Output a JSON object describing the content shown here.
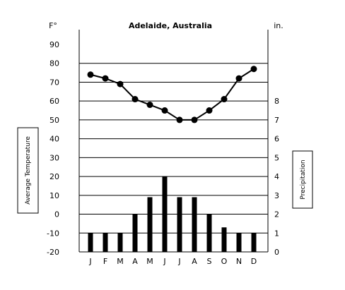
{
  "chart_data": {
    "type": "bar+line",
    "title": "Adelaide, Australia",
    "left_unit": "F°",
    "right_unit": "in.",
    "left_axis_label": "Average Temperature",
    "right_axis_label": "Precipitation",
    "categories": [
      "J",
      "F",
      "M",
      "A",
      "M",
      "J",
      "J",
      "A",
      "S",
      "O",
      "N",
      "D"
    ],
    "temperature": {
      "ylim": [
        -20,
        90
      ],
      "ticks": [
        -20,
        -10,
        0,
        10,
        20,
        30,
        40,
        50,
        60,
        70,
        80,
        90
      ],
      "values": [
        74,
        72,
        69,
        61,
        58,
        55,
        50,
        50,
        55,
        61,
        72,
        77
      ]
    },
    "precipitation": {
      "ylim": [
        0,
        8
      ],
      "ticks": [
        0,
        1,
        2,
        3,
        4,
        5,
        6,
        7,
        8
      ],
      "values": [
        1,
        1,
        1,
        2,
        2.9,
        4,
        2.9,
        2.9,
        2,
        1.3,
        1,
        1
      ]
    },
    "grid": true
  }
}
